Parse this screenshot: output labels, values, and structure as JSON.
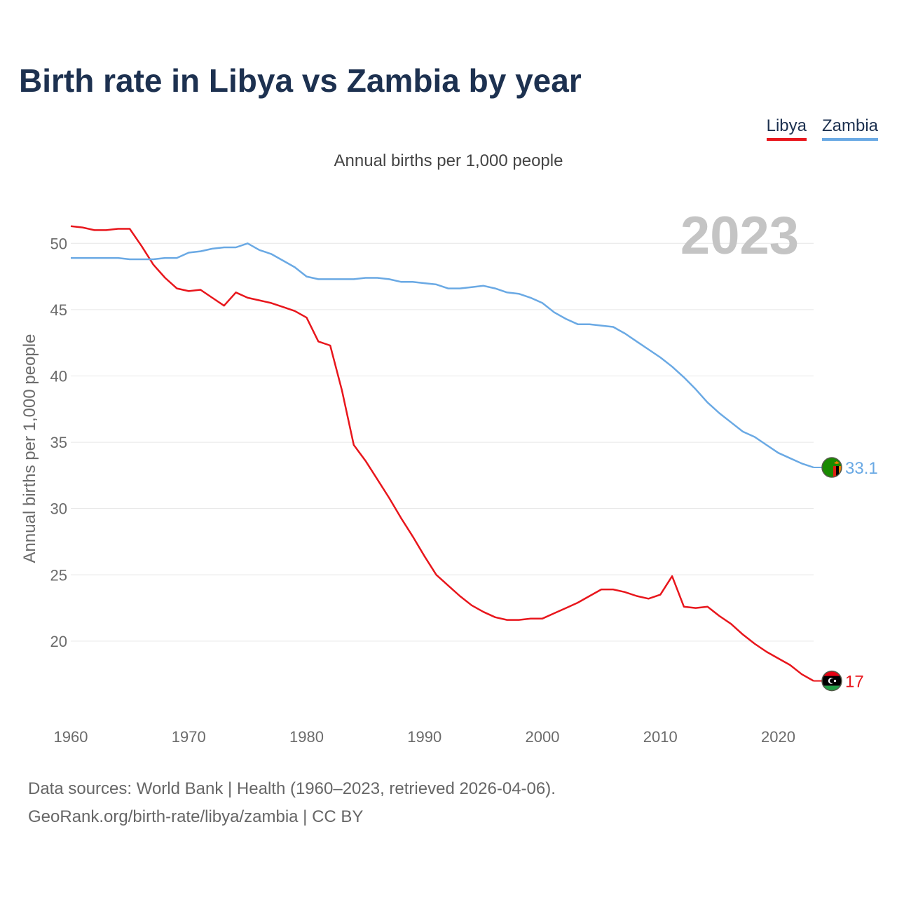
{
  "title": "Birth rate in Libya vs Zambia by year",
  "subtitle": "Annual births per 1,000 people",
  "source": {
    "line1": "Data sources: World Bank | Health (1960–2023, retrieved 2026-04-06).",
    "line2": "GeoRank.org/birth-rate/libya/zambia | CC BY"
  },
  "legend": [
    {
      "label": "Libya",
      "color": "#e8161c"
    },
    {
      "label": "Zambia",
      "color": "#6aa9e4"
    }
  ],
  "flags": {
    "zambia": {
      "field": "#198a00",
      "red": "#de2010",
      "black": "#000000",
      "orange": "#ef7d00",
      "eagle": "#ef7d00"
    },
    "libya": {
      "top": "#e70013",
      "middle": "#000000",
      "bottom": "#239e46",
      "crescent": "#ffffff"
    }
  },
  "chart_data": {
    "type": "line",
    "title": "Birth rate in Libya vs Zambia by year",
    "ylabel": "Annual births per 1,000 people",
    "xlabel": "",
    "xlim": [
      1960,
      2023
    ],
    "ylim": [
      15.5,
      52.5
    ],
    "xticks": [
      1960,
      1970,
      1980,
      1990,
      2000,
      2010,
      2020
    ],
    "yticks": [
      20,
      25,
      30,
      35,
      40,
      45,
      50
    ],
    "grid": true,
    "year_label": "2023",
    "x": [
      1960,
      1961,
      1962,
      1963,
      1964,
      1965,
      1966,
      1967,
      1968,
      1969,
      1970,
      1971,
      1972,
      1973,
      1974,
      1975,
      1976,
      1977,
      1978,
      1979,
      1980,
      1981,
      1982,
      1983,
      1984,
      1985,
      1986,
      1987,
      1988,
      1989,
      1990,
      1991,
      1992,
      1993,
      1994,
      1995,
      1996,
      1997,
      1998,
      1999,
      2000,
      2001,
      2002,
      2003,
      2004,
      2005,
      2006,
      2007,
      2008,
      2009,
      2010,
      2011,
      2012,
      2013,
      2014,
      2015,
      2016,
      2017,
      2018,
      2019,
      2020,
      2021,
      2022,
      2023
    ],
    "series": [
      {
        "name": "Libya",
        "color": "#e8161c",
        "end_label": "17",
        "values": [
          51.3,
          51.2,
          51.0,
          51.0,
          51.1,
          51.1,
          49.8,
          48.4,
          47.4,
          46.6,
          46.4,
          46.5,
          45.9,
          45.3,
          46.3,
          45.9,
          45.7,
          45.5,
          45.2,
          44.9,
          44.4,
          42.6,
          42.3,
          38.9,
          34.8,
          33.6,
          32.2,
          30.8,
          29.3,
          27.9,
          26.4,
          25.0,
          24.2,
          23.4,
          22.7,
          22.2,
          21.8,
          21.6,
          21.6,
          21.7,
          21.7,
          22.1,
          22.5,
          22.9,
          23.4,
          23.9,
          23.9,
          23.7,
          23.4,
          23.2,
          23.5,
          24.9,
          22.6,
          22.5,
          22.6,
          21.9,
          21.3,
          20.5,
          19.8,
          19.2,
          18.7,
          18.2,
          17.5,
          17.0
        ]
      },
      {
        "name": "Zambia",
        "color": "#6aa9e4",
        "end_label": "33.1",
        "values": [
          48.9,
          48.9,
          48.9,
          48.9,
          48.9,
          48.8,
          48.8,
          48.8,
          48.9,
          48.9,
          49.3,
          49.4,
          49.6,
          49.7,
          49.7,
          50.0,
          49.5,
          49.2,
          48.7,
          48.2,
          47.5,
          47.3,
          47.3,
          47.3,
          47.3,
          47.4,
          47.4,
          47.3,
          47.1,
          47.1,
          47.0,
          46.9,
          46.6,
          46.6,
          46.7,
          46.8,
          46.6,
          46.3,
          46.2,
          45.9,
          45.5,
          44.8,
          44.3,
          43.9,
          43.9,
          43.8,
          43.7,
          43.2,
          42.6,
          42.0,
          41.4,
          40.7,
          39.9,
          39.0,
          38.0,
          37.2,
          36.5,
          35.8,
          35.4,
          34.8,
          34.2,
          33.8,
          33.4,
          33.1
        ]
      }
    ]
  }
}
